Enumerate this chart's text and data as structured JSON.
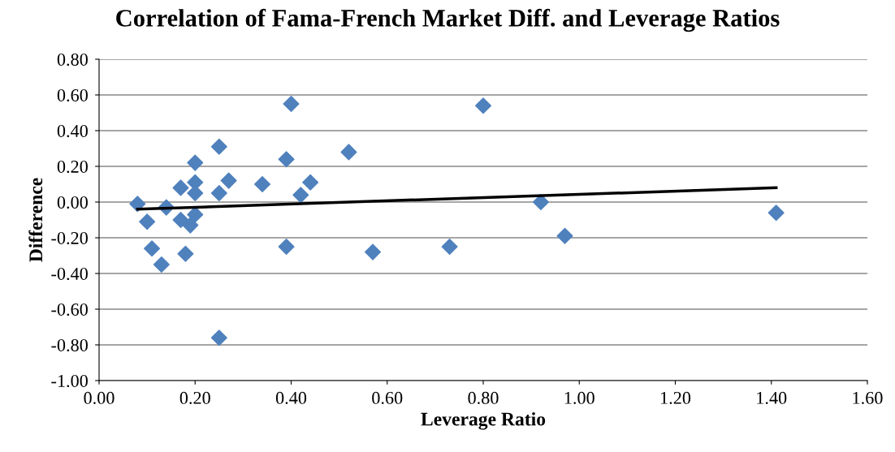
{
  "chart_data": {
    "type": "scatter",
    "title": "Correlation of Fama-French Market Diff. and Leverage Ratios",
    "xlabel": "Leverage Ratio",
    "ylabel": "Difference",
    "series": [
      {
        "color": "#4f81bd",
        "marker": "diamond",
        "x": [
          0.08,
          0.1,
          0.11,
          0.13,
          0.14,
          0.17,
          0.17,
          0.18,
          0.19,
          0.2,
          0.2,
          0.2,
          0.2,
          0.25,
          0.25,
          0.25,
          0.27,
          0.34,
          0.39,
          0.39,
          0.4,
          0.42,
          0.44,
          0.52,
          0.57,
          0.73,
          0.8,
          0.92,
          0.97,
          1.41
        ],
        "values": [
          -0.01,
          -0.11,
          -0.26,
          -0.35,
          -0.03,
          0.08,
          -0.1,
          -0.29,
          -0.13,
          0.11,
          0.05,
          -0.07,
          0.22,
          0.31,
          0.05,
          -0.76,
          0.12,
          0.1,
          0.24,
          -0.25,
          0.55,
          0.04,
          0.11,
          0.28,
          -0.28,
          -0.25,
          0.54,
          0.0,
          -0.19,
          -0.06
        ]
      },
      {
        "type": "line",
        "color": "#000000",
        "marker": "none",
        "x": [
          0.08,
          1.41
        ],
        "values": [
          -0.04,
          0.08
        ]
      }
    ],
    "xlim": [
      0,
      1.6
    ],
    "xticks": [
      {
        "value": 0,
        "label": "0.00"
      },
      {
        "value": 0.2,
        "label": "0.20"
      },
      {
        "value": 0.4,
        "label": "0.40"
      },
      {
        "value": 0.6,
        "label": "0.60"
      },
      {
        "value": 0.8,
        "label": "0.80"
      },
      {
        "value": 1.0,
        "label": "1.00"
      },
      {
        "value": 1.2,
        "label": "1.20"
      },
      {
        "value": 1.4,
        "label": "1.40"
      },
      {
        "value": 1.6,
        "label": "1.60"
      }
    ],
    "ylim": [
      -1,
      0.8
    ],
    "yticks": [
      {
        "value": -1,
        "label": "-1.00"
      },
      {
        "value": -0.8,
        "label": "-0.80"
      },
      {
        "value": -0.6,
        "label": "-0.60"
      },
      {
        "value": -0.4,
        "label": "-0.40"
      },
      {
        "value": -0.2,
        "label": "-0.20"
      },
      {
        "value": 0,
        "label": "0.00"
      },
      {
        "value": 0.2,
        "label": "0.20"
      },
      {
        "value": 0.4,
        "label": "0.40"
      },
      {
        "value": 0.6,
        "label": "0.60"
      },
      {
        "value": 0.8,
        "label": "0.80"
      }
    ],
    "grid": "y"
  }
}
